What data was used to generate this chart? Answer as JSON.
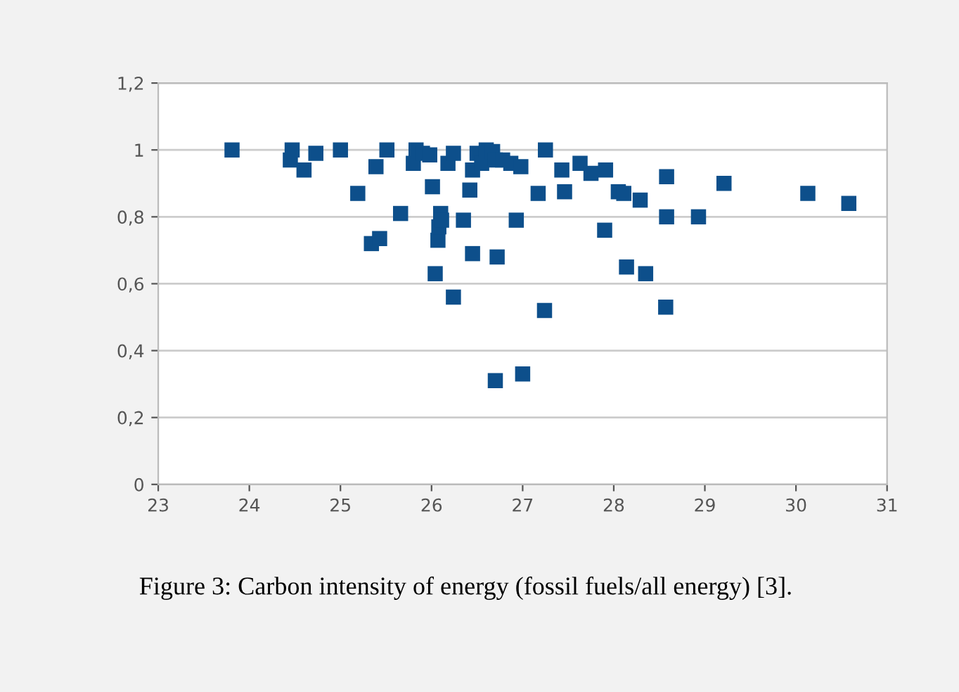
{
  "chart_data": {
    "type": "scatter",
    "x": [
      23.81,
      24.45,
      24.47,
      24.6,
      24.73,
      25.0,
      25.19,
      25.39,
      25.34,
      25.43,
      25.51,
      25.66,
      25.8,
      25.83,
      25.9,
      25.98,
      26.01,
      26.04,
      26.07,
      26.08,
      26.1,
      26.11,
      26.18,
      26.24,
      26.24,
      26.35,
      26.42,
      26.45,
      26.45,
      26.5,
      26.55,
      26.6,
      26.67,
      26.7,
      26.7,
      26.72,
      26.78,
      26.87,
      26.93,
      26.98,
      27.0,
      27.17,
      27.25,
      27.24,
      27.43,
      27.46,
      27.63,
      27.75,
      27.91,
      27.9,
      28.05,
      28.11,
      28.14,
      28.29,
      28.35,
      28.58,
      28.58,
      28.57,
      28.93,
      29.21,
      30.13,
      30.58
    ],
    "series": [
      {
        "color": "#0d4f8b",
        "values": [
          1.0,
          0.97,
          1.0,
          0.94,
          0.99,
          1.0,
          0.87,
          0.95,
          0.72,
          0.735,
          1.0,
          0.81,
          0.96,
          1.0,
          0.99,
          0.985,
          0.89,
          0.63,
          0.73,
          0.77,
          0.81,
          0.79,
          0.96,
          0.99,
          0.56,
          0.79,
          0.88,
          0.94,
          0.69,
          0.99,
          0.96,
          1.0,
          0.995,
          0.97,
          0.31,
          0.68,
          0.97,
          0.96,
          0.79,
          0.95,
          0.33,
          0.87,
          1.0,
          0.52,
          0.94,
          0.875,
          0.96,
          0.93,
          0.94,
          0.76,
          0.875,
          0.87,
          0.65,
          0.85,
          0.63,
          0.92,
          0.8,
          0.53,
          0.8,
          0.9,
          0.87,
          0.84
        ]
      }
    ],
    "xlim": [
      23,
      31
    ],
    "xticks": [
      23,
      24,
      25,
      26,
      27,
      28,
      29,
      30,
      31
    ],
    "ylim": [
      0,
      1.2
    ],
    "yticks": [
      0,
      {
        "value": 0.2,
        "label": "0,2"
      },
      {
        "value": 0.4,
        "label": "0,4"
      },
      {
        "value": 0.6,
        "label": "0,6"
      },
      {
        "value": 0.8,
        "label": "0,8"
      },
      1,
      {
        "value": 1.2,
        "label": "1,2"
      }
    ],
    "grid": "y",
    "marker": "square",
    "legend": false,
    "annotations": [
      "Figure 3: Carbon intensity of energy (fossil fuels/all energy) [3]."
    ]
  }
}
